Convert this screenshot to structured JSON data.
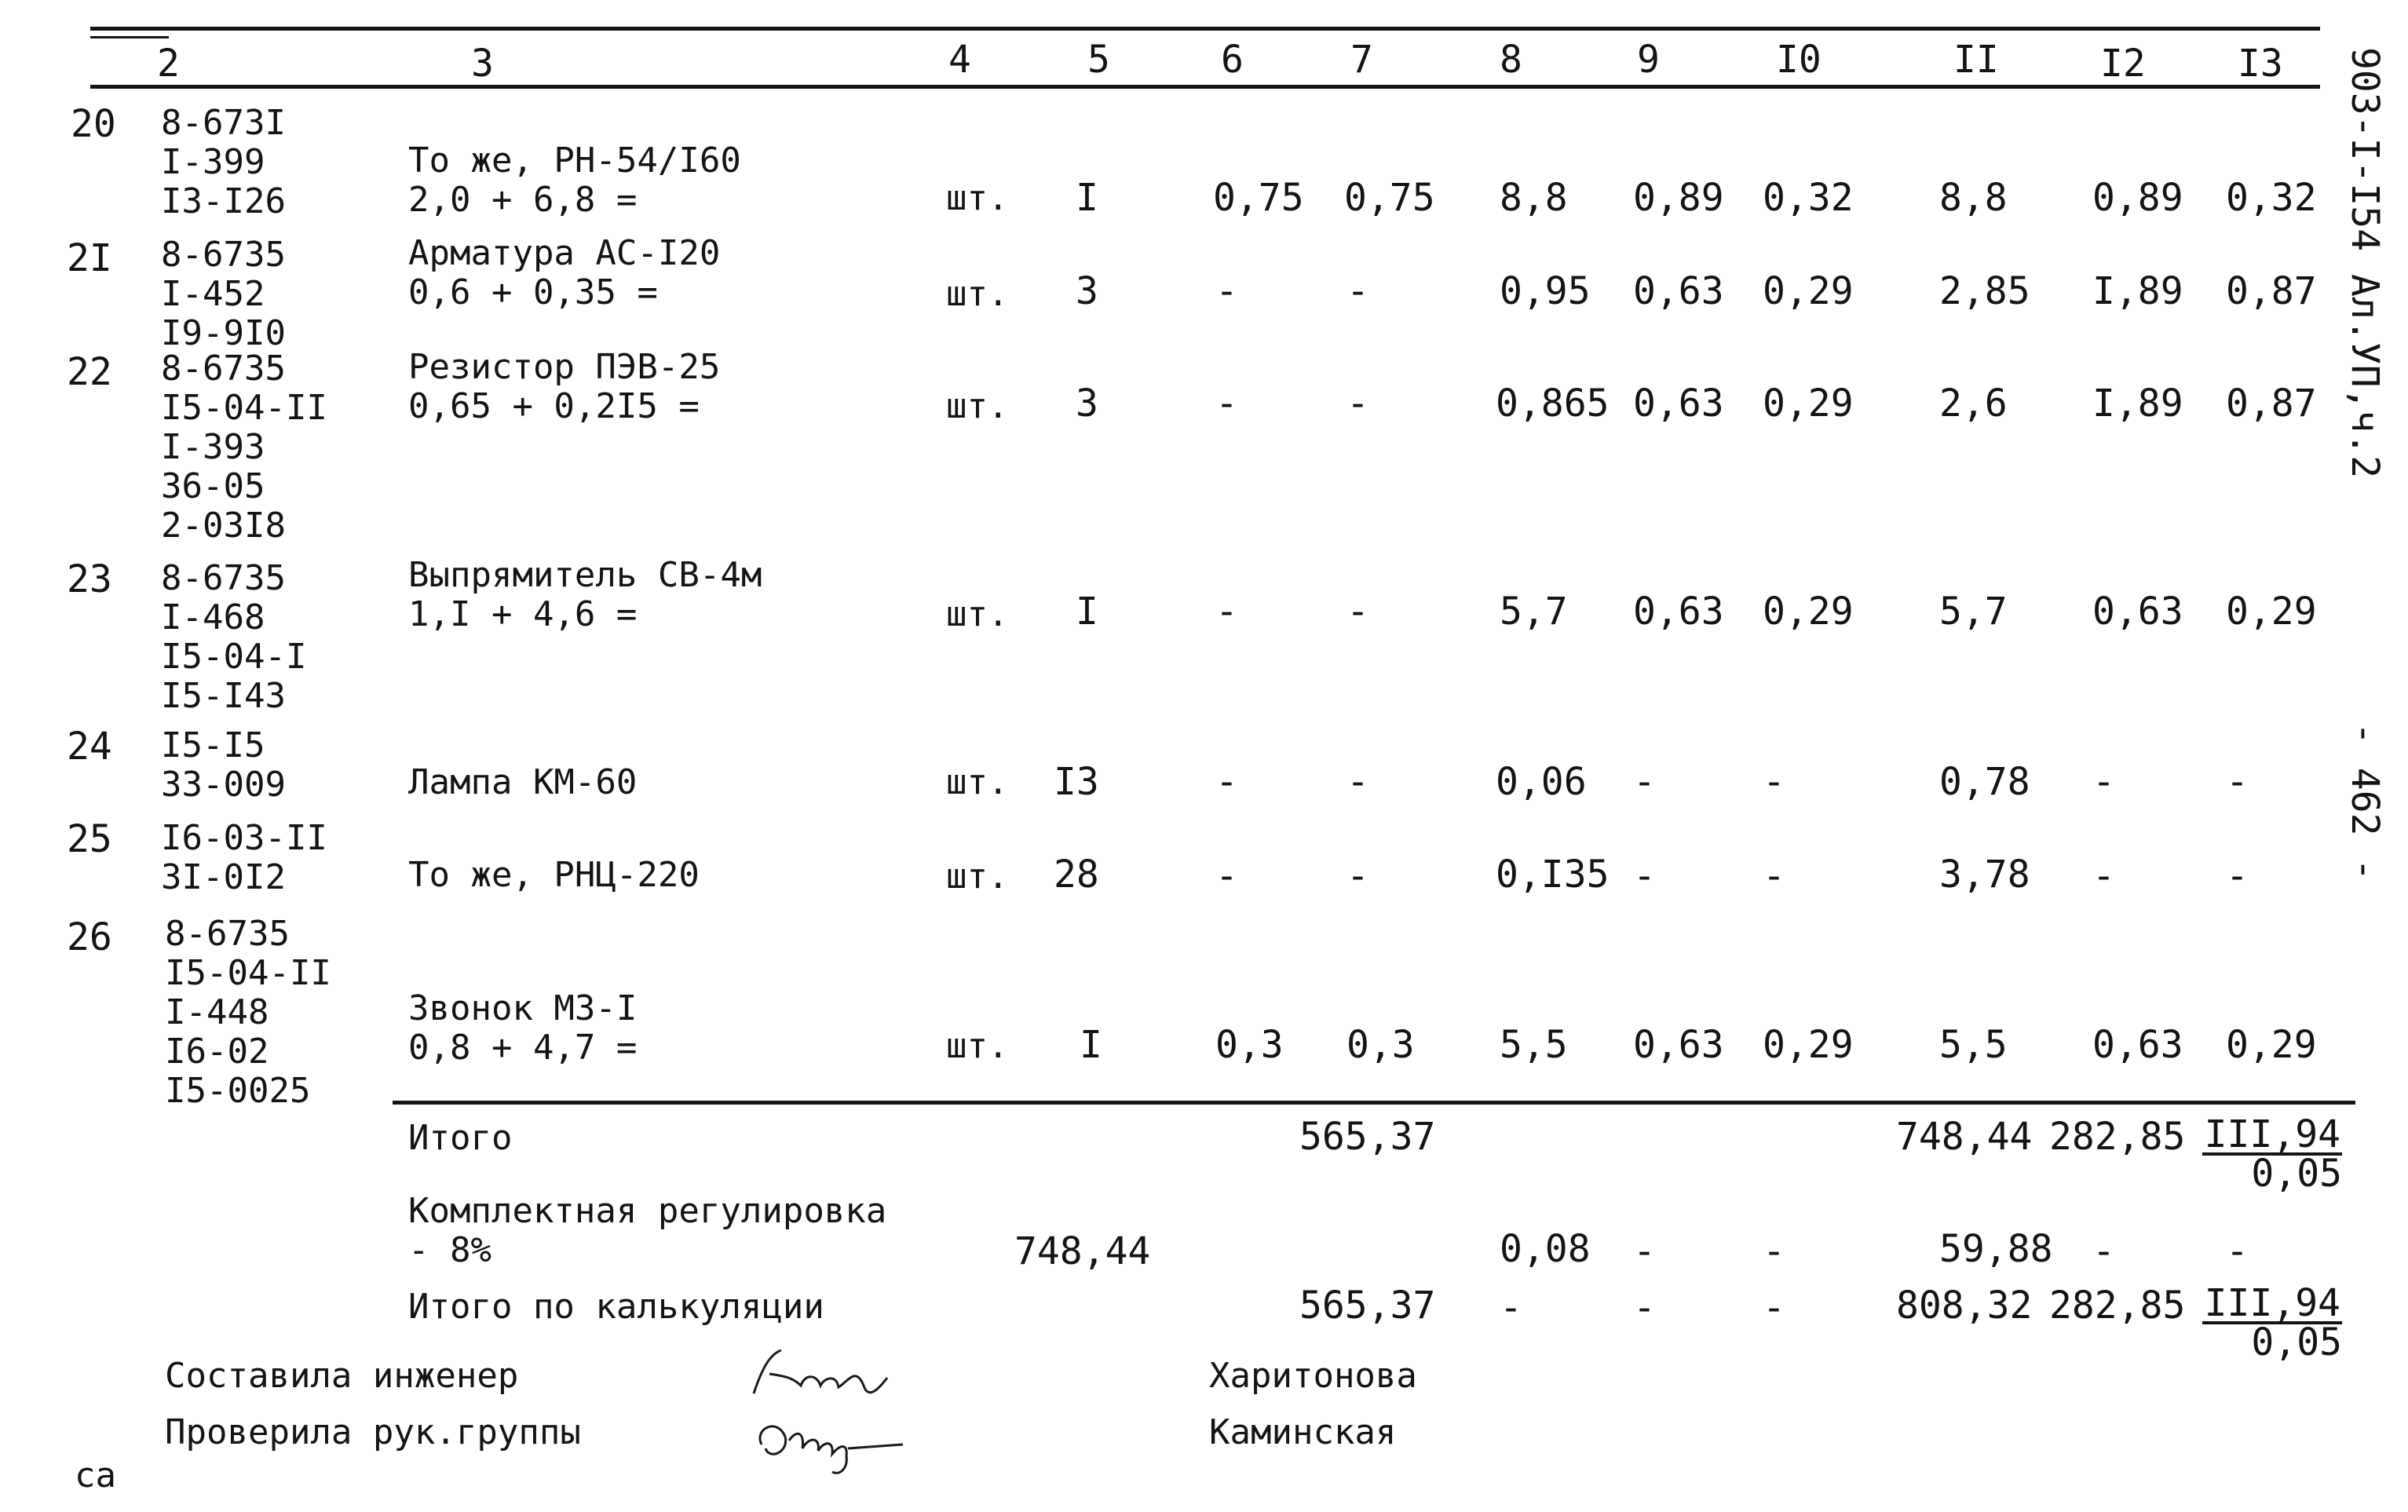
{
  "side_code": "903-I-I54 Ал.УП,ч.2",
  "page_number": "- 462 -",
  "header_cols": [
    "2",
    "3",
    "4",
    "5",
    "6",
    "7",
    "8",
    "9",
    "I0",
    "II",
    "I2",
    "I3"
  ],
  "rows": [
    {
      "num": "20",
      "code": "8-673I\nI-399\nI3-I26",
      "name": "То же, РН-54/I60\n2,0 + 6,8 =",
      "unit": "шт.",
      "qty": "I",
      "c6": "0,75",
      "c7": "0,75",
      "c8": "8,8",
      "c9": "0,89",
      "c10": "0,32",
      "c11": "8,8",
      "c12": "0,89",
      "c13": "0,32"
    },
    {
      "num": "2I",
      "code": "8-6735\nI-452\nI9-9I0",
      "name": "Арматура АС-I20\n0,6 + 0,35 =",
      "unit": "шт.",
      "qty": "3",
      "c6": "-",
      "c7": "-",
      "c8": "0,95",
      "c9": "0,63",
      "c10": "0,29",
      "c11": "2,85",
      "c12": "I,89",
      "c13": "0,87"
    },
    {
      "num": "22",
      "code": "8-6735\nI5-04-II\nI-393\n36-05\n2-03I8",
      "name": "Резистор ПЭВ-25\n0,65 + 0,2I5 =",
      "unit": "шт.",
      "qty": "3",
      "c6": "-",
      "c7": "-",
      "c8": "0,865",
      "c9": "0,63",
      "c10": "0,29",
      "c11": "2,6",
      "c12": "I,89",
      "c13": "0,87"
    },
    {
      "num": "23",
      "code": "8-6735\nI-468\nI5-04-I\nI5-I43",
      "name": "Выпрямитель СВ-4м\n1,I + 4,6 =",
      "unit": "шт.",
      "qty": "I",
      "c6": "-",
      "c7": "-",
      "c8": "5,7",
      "c9": "0,63",
      "c10": "0,29",
      "c11": "5,7",
      "c12": "0,63",
      "c13": "0,29"
    },
    {
      "num": "24",
      "code": "I5-I5\n33-009",
      "name": "Лампа КМ-60",
      "unit": "шт.",
      "qty": "I3",
      "c6": "-",
      "c7": "-",
      "c8": "0,06",
      "c9": "-",
      "c10": "-",
      "c11": "0,78",
      "c12": "-",
      "c13": "-"
    },
    {
      "num": "25",
      "code": "I6-03-II\n3I-0I2",
      "name": "То же, РНЦ-220",
      "unit": "шт.",
      "qty": "28",
      "c6": "-",
      "c7": "-",
      "c8": "0,I35",
      "c9": "-",
      "c10": "-",
      "c11": "3,78",
      "c12": "-",
      "c13": "-"
    },
    {
      "num": "26",
      "code": "8-6735\nI5-04-II\nI-448\nI6-02\nI5-0025",
      "name": "Звонок МЗ-I\n0,8 + 4,7 =",
      "unit": "шт.",
      "qty": "I",
      "c6": "0,3",
      "c7": "0,3",
      "c8": "5,5",
      "c9": "0,63",
      "c10": "0,29",
      "c11": "5,5",
      "c12": "0,63",
      "c13": "0,29"
    }
  ],
  "total": {
    "label": "Итого",
    "c7": "565,37",
    "c11": "748,44",
    "c12": "282,85",
    "c13_top": "III,94",
    "c13_bottom": "0,05"
  },
  "adjust": {
    "label": "Комплектная регулировка\n- 8%",
    "c5": "748,44",
    "c8": "0,08",
    "c9": "-",
    "c10": "-",
    "c11": "59,88",
    "c12": "-",
    "c13": "-"
  },
  "grand_total": {
    "label": "Итого по калькуляции",
    "c7": "565,37",
    "c8": "-",
    "c9": "-",
    "c10": "-",
    "c11": "808,32",
    "c12": "282,85",
    "c13_top": "III,94",
    "c13_bottom": "0,05"
  },
  "signatures": {
    "compiled_label": "Составила инженер",
    "compiled_name": "Харитонова",
    "checked_label": "Проверила рук.группы",
    "checked_name": "Каминская"
  },
  "footer_mark": "са"
}
